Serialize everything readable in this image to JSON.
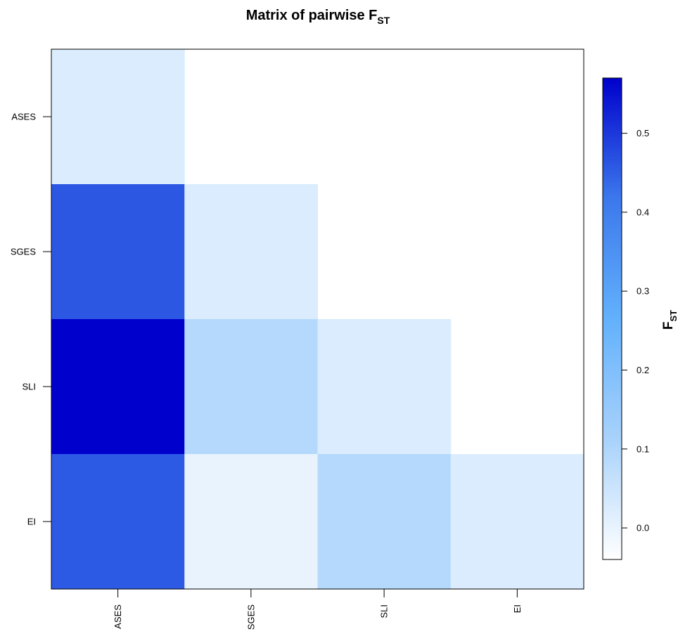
{
  "chart_data": {
    "type": "heatmap",
    "title": {
      "main": "Matrix of pairwise F",
      "subscript": "ST"
    },
    "rows": [
      "ASES",
      "SGES",
      "SLI",
      "EI"
    ],
    "columns": [
      "ASES",
      "SGES",
      "SLI",
      "EI"
    ],
    "cells": [
      [
        0.025,
        null,
        null,
        null
      ],
      [
        0.46,
        0.025,
        null,
        null
      ],
      [
        0.57,
        0.09,
        0.025,
        null
      ],
      [
        0.455,
        0.0,
        0.09,
        0.025
      ]
    ],
    "colorbar": {
      "label": "F",
      "label_subscript": "ST",
      "range": [
        -0.04,
        0.57
      ],
      "ticks": [
        0.0,
        0.1,
        0.2,
        0.3,
        0.4,
        0.5
      ],
      "tick_labels": [
        "0.0",
        "0.1",
        "0.2",
        "0.3",
        "0.4",
        "0.5"
      ],
      "colors": [
        "#ffffff",
        "#a8d2fb",
        "#62b1fc",
        "#3c78ec",
        "#0000cc"
      ]
    },
    "grid": false
  }
}
